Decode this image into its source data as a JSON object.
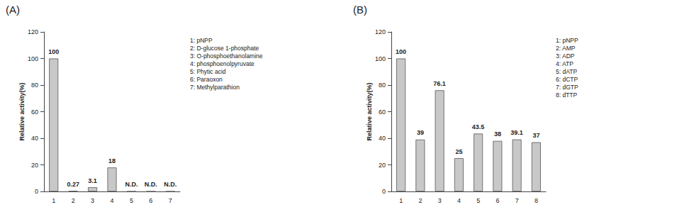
{
  "chart_data": [
    {
      "type": "bar",
      "title": "(A)",
      "y_label": "Relative activity(%)",
      "categories": [
        "1",
        "2",
        "3",
        "4",
        "5",
        "6",
        "7"
      ],
      "values": [
        100,
        0.27,
        3.1,
        18,
        0,
        0,
        0
      ],
      "value_labels": [
        "100",
        "0.27",
        "3.1",
        "18",
        "N.D.",
        "N.D.",
        "N.D."
      ],
      "color": "#c8c8c8",
      "ylim": [
        0,
        120
      ],
      "yticks": [
        0,
        20,
        40,
        60,
        80,
        100,
        120
      ],
      "grid": false,
      "data_labels": true,
      "annotations": [
        "1: pNPP",
        "2: D-glucose 1-phosphate",
        "3: O-phosphoethanolamine",
        "4: phosphoenolpyruvate",
        "5: Phytic acid",
        "6: Paraoxon",
        "7: Methylparathion"
      ]
    },
    {
      "type": "bar",
      "title": "(B)",
      "y_label": "Relative activity(%)",
      "categories": [
        "1",
        "2",
        "3",
        "4",
        "5",
        "6",
        "7",
        "8"
      ],
      "values": [
        100,
        39,
        76.1,
        25,
        43.5,
        38,
        39.1,
        37
      ],
      "color": "#c8c8c8",
      "ylim": [
        0,
        120
      ],
      "yticks": [
        0,
        20,
        40,
        60,
        80,
        100,
        120
      ],
      "grid": false,
      "data_labels": true,
      "annotations": [
        "1: pNPP",
        "2: AMP",
        "3: ADP",
        "4: ATP",
        "5: dATP",
        "6: dCTP",
        "7: dGTP",
        "8: dTTP"
      ]
    }
  ]
}
